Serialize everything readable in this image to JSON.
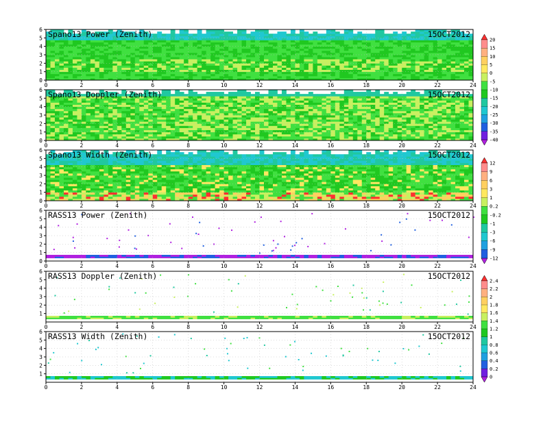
{
  "chart_data": [
    {
      "type": "heatmap",
      "title": "Spano13 Power (Zenith)",
      "date": "15OCT2012",
      "x": {
        "range": [
          0,
          24
        ],
        "ticks": [
          "0",
          "2",
          "4",
          "6",
          "8",
          "10",
          "12",
          "14",
          "16",
          "18",
          "20",
          "22",
          "24"
        ]
      },
      "y": {
        "range": [
          0,
          6
        ],
        "ticks": [
          "0",
          "1",
          "2",
          "3",
          "4",
          "5",
          "6"
        ]
      },
      "grid": true,
      "colorbar": "scale1",
      "description_profile": "dense",
      "dominant_levels": [
        "-10",
        "-5",
        "0"
      ]
    },
    {
      "type": "heatmap",
      "title": "Spano13 Doppler (Zenith)",
      "date": "15OCT2012",
      "x": {
        "range": [
          0,
          24
        ],
        "ticks": [
          "0",
          "2",
          "4",
          "6",
          "8",
          "10",
          "12",
          "14",
          "16",
          "18",
          "20",
          "22",
          "24"
        ]
      },
      "y": {
        "range": [
          0,
          6
        ],
        "ticks": [
          "0",
          "1",
          "2",
          "3",
          "4",
          "5",
          "6"
        ]
      },
      "grid": true,
      "colorbar": "scale1",
      "description_profile": "dense",
      "dominant_levels": [
        "-10",
        "-5",
        "0"
      ]
    },
    {
      "type": "heatmap",
      "title": "Spano13 Width (Zenith)",
      "date": "15OCT2012",
      "x": {
        "range": [
          0,
          24
        ],
        "ticks": [
          "0",
          "2",
          "4",
          "6",
          "8",
          "10",
          "12",
          "14",
          "16",
          "18",
          "20",
          "22",
          "24"
        ]
      },
      "y": {
        "range": [
          0,
          6
        ],
        "ticks": [
          "0",
          "1",
          "2",
          "3",
          "4",
          "5",
          "6"
        ]
      },
      "grid": true,
      "colorbar": "scale2",
      "description_profile": "dense",
      "dominant_levels": [
        "-3",
        "-1",
        "1"
      ]
    },
    {
      "type": "heatmap",
      "title": "RASS13 Power (Zenith)",
      "date": "15OCT2012",
      "x": {
        "range": [
          0,
          24
        ],
        "ticks": [
          "0",
          "2",
          "4",
          "6",
          "8",
          "10",
          "12",
          "14",
          "16",
          "18",
          "20",
          "22",
          "24"
        ]
      },
      "y": {
        "range": [
          0,
          6
        ],
        "ticks": [
          "0",
          "1",
          "2",
          "3",
          "4",
          "5",
          "6"
        ]
      },
      "grid": true,
      "colorbar": "scale2",
      "description_profile": "sparse",
      "dominant_levels": [
        "-12",
        "-9"
      ]
    },
    {
      "type": "heatmap",
      "title": "RASS13 Doppler (Zenith)",
      "date": "15OCT2012",
      "x": {
        "range": [
          0,
          24
        ],
        "ticks": [
          "0",
          "2",
          "4",
          "6",
          "8",
          "10",
          "12",
          "14",
          "16",
          "18",
          "20",
          "22",
          "24"
        ]
      },
      "y": {
        "range": [
          0,
          6
        ],
        "ticks": [
          "1",
          "2",
          "3",
          "4",
          "5",
          "6"
        ]
      },
      "grid": true,
      "colorbar": "scale3",
      "description_profile": "sparse",
      "dominant_levels": [
        "1.2",
        "1.4"
      ]
    },
    {
      "type": "heatmap",
      "title": "RASS13 Width (Zenith)",
      "date": "15OCT2012",
      "x": {
        "range": [
          0,
          24
        ],
        "ticks": [
          "0",
          "2",
          "4",
          "6",
          "8",
          "10",
          "12",
          "14",
          "16",
          "18",
          "20",
          "22",
          "24"
        ]
      },
      "y": {
        "range": [
          0,
          6
        ],
        "ticks": [
          "1",
          "2",
          "3",
          "4",
          "5",
          "6"
        ]
      },
      "grid": true,
      "colorbar": "scale3",
      "description_profile": "sparse",
      "dominant_levels": [
        "0.4",
        "0.6"
      ]
    }
  ],
  "colorbars": {
    "scale1": {
      "labels": [
        "20",
        "15",
        "10",
        "5",
        "0",
        "-5",
        "-10",
        "-15",
        "-20",
        "-25",
        "-30",
        "-35",
        "-40"
      ],
      "colors": [
        "#ff3030",
        "#ff8c8c",
        "#ffb080",
        "#ffd060",
        "#ffe860",
        "#c8f060",
        "#40e040",
        "#20c820",
        "#20c8a0",
        "#20c8d0",
        "#20a0e0",
        "#2060e0",
        "#7020e0",
        "#b020e0"
      ]
    },
    "scale2": {
      "labels": [
        "12",
        "9",
        "6",
        "3",
        "1",
        "0.2",
        "-0.2",
        "-1",
        "-3",
        "-6",
        "-9",
        "-12"
      ],
      "colors": [
        "#ff3030",
        "#ff8c8c",
        "#ffb080",
        "#ffd060",
        "#ffe860",
        "#c8f060",
        "#40e040",
        "#20c820",
        "#20c8a0",
        "#20c8d0",
        "#20a0e0",
        "#2060e0",
        "#b020e0"
      ]
    },
    "scale3": {
      "labels": [
        "2.4",
        "2.2",
        "2",
        "1.8",
        "1.6",
        "1.4",
        "1.2",
        "1",
        "0.8",
        "0.6",
        "0.4",
        "0.2",
        "0"
      ],
      "colors": [
        "#ff3030",
        "#ff8c8c",
        "#ffb080",
        "#ffd060",
        "#ffe860",
        "#c8f060",
        "#40e040",
        "#20c820",
        "#20c8a0",
        "#20c8d0",
        "#20a0e0",
        "#2060e0",
        "#7020e0",
        "#b020e0"
      ]
    }
  }
}
